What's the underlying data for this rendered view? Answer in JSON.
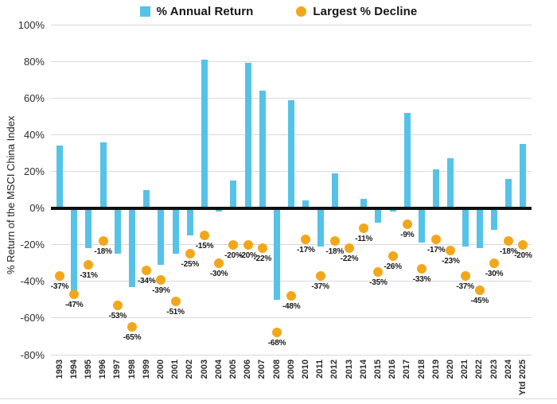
{
  "legend": {
    "annual_return": "% Annual Return",
    "largest_decline": "Largest % Decline"
  },
  "colors": {
    "bar_blue": "#55C3E8",
    "dot_orange": "#F2A71B",
    "gridline": "#D9D9D9",
    "zero_line": "#101010"
  },
  "chart_data": {
    "type": "bar",
    "title": "",
    "xlabel": "",
    "ylabel": "% Return of the MSCI China Index",
    "ylim": [
      -80,
      100
    ],
    "y_ticks": [
      "100%",
      "80%",
      "60%",
      "40%",
      "20%",
      "0%",
      "-20%",
      "-40%",
      "-60%",
      "-80%"
    ],
    "grid": "horizontal",
    "legend_position": "top-center",
    "categories": [
      "1993",
      "1994",
      "1995",
      "1996",
      "1997",
      "1998",
      "1999",
      "2000",
      "2001",
      "2002",
      "2003",
      "2004",
      "2005",
      "2006",
      "2007",
      "2008",
      "2009",
      "2010",
      "2011",
      "2012",
      "2013",
      "2014",
      "2015",
      "2016",
      "2017",
      "2018",
      "2019",
      "2020",
      "2021",
      "2022",
      "2023",
      "2024",
      "Ytd 2025"
    ],
    "series": [
      {
        "name": "% Annual Return",
        "type": "bar",
        "values": [
          34,
          -46,
          -22,
          36,
          -25,
          -43,
          10,
          -31,
          -25,
          -15,
          81,
          -2,
          15,
          79,
          64,
          -50,
          59,
          4,
          -21,
          19,
          0,
          5,
          -8,
          -2,
          52,
          -19,
          21,
          27,
          -21,
          -22,
          -12,
          16,
          35
        ]
      },
      {
        "name": "Largest % Decline",
        "type": "scatter",
        "point_labels": true,
        "values": [
          -37,
          -47,
          -31,
          -18,
          -53,
          -65,
          -34,
          -39,
          -51,
          -25,
          -15,
          -30,
          -20,
          -20,
          -22,
          -68,
          -48,
          -17,
          -37,
          -18,
          -22,
          -11,
          -35,
          -26,
          -9,
          -33,
          -17,
          -23,
          -37,
          -45,
          -30,
          -18,
          -20
        ]
      }
    ]
  }
}
